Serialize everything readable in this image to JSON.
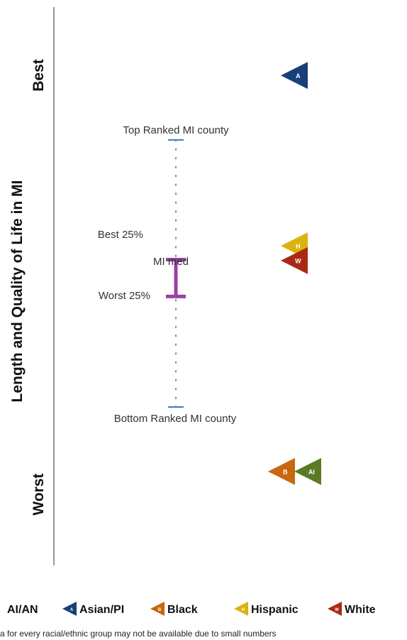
{
  "chart_data": {
    "type": "scatter",
    "ylabel": "Length and Quality of Life in MI",
    "y_end_labels": {
      "top": "Best",
      "bottom": "Worst"
    },
    "county_range": {
      "top_label": "Top Ranked MI county",
      "bottom_label": "Bottom Ranked MI county",
      "best25_label": "Best 25%",
      "worst25_label": "Worst 25%",
      "median_label": "MI med",
      "top": 580,
      "best25": 320,
      "worst25": 240,
      "bottom": 0
    },
    "series": [
      {
        "name": "AI/AN",
        "marker_letter": "AI",
        "color": "#5b7a24",
        "value": -140
      },
      {
        "name": "Asian/PI",
        "marker_letter": "A",
        "color": "#173f7a",
        "value": 720
      },
      {
        "name": "Black",
        "marker_letter": "B",
        "color": "#c8670f",
        "value": -140
      },
      {
        "name": "Hispanic",
        "marker_letter": "H",
        "color": "#d9b40e",
        "value": 350
      },
      {
        "name": "White",
        "marker_letter": "W",
        "color": "#a82a14",
        "value": 318
      }
    ],
    "range_colors": {
      "iqr": "#9b3fa3",
      "ends": "#4f79b5",
      "dots": "#6d8cbf"
    },
    "note": "a for every racial/ethnic group may not be available due to small numbers"
  }
}
